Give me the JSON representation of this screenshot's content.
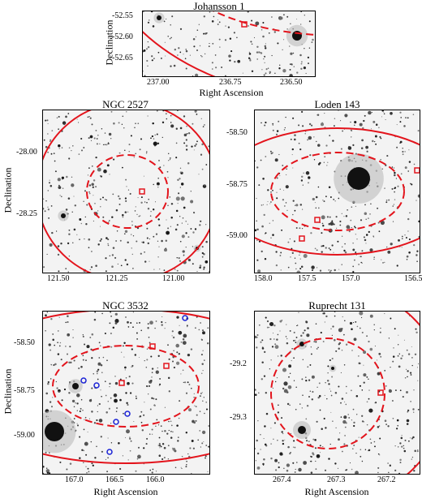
{
  "figure": {
    "x_axis_label": "Right Ascension",
    "y_axis_label": "Declination"
  },
  "panels": [
    {
      "title": "Johansson 1",
      "x_ticks": [
        "237.00",
        "236.75",
        "236.50"
      ],
      "y_ticks": [
        "-52.55",
        "-52.60",
        "-52.65"
      ],
      "show_xlabel": true,
      "show_ylabel": true,
      "marker_colors": {
        "red": "#e3141c",
        "blue": "#1a22d6"
      }
    },
    {
      "title": "NGC 2527",
      "x_ticks": [
        "121.50",
        "121.25",
        "121.00"
      ],
      "y_ticks": [
        "-28.00",
        "-28.25"
      ],
      "show_xlabel": false,
      "show_ylabel": true
    },
    {
      "title": "Loden 143",
      "x_ticks": [
        "158.0",
        "157.5",
        "157.0",
        "156.5"
      ],
      "y_ticks": [
        "-58.50",
        "-58.75",
        "-59.00"
      ],
      "show_xlabel": false,
      "show_ylabel": false
    },
    {
      "title": "NGC 3532",
      "x_ticks": [
        "167.0",
        "166.5",
        "166.0"
      ],
      "y_ticks": [
        "-58.50",
        "-58.75",
        "-59.00"
      ],
      "show_xlabel": true,
      "show_ylabel": true
    },
    {
      "title": "Ruprecht 131",
      "x_ticks": [
        "267.4",
        "267.3",
        "267.2"
      ],
      "y_ticks": [
        "-29.2",
        "-29.3"
      ],
      "show_xlabel": true,
      "show_ylabel": false
    }
  ]
}
